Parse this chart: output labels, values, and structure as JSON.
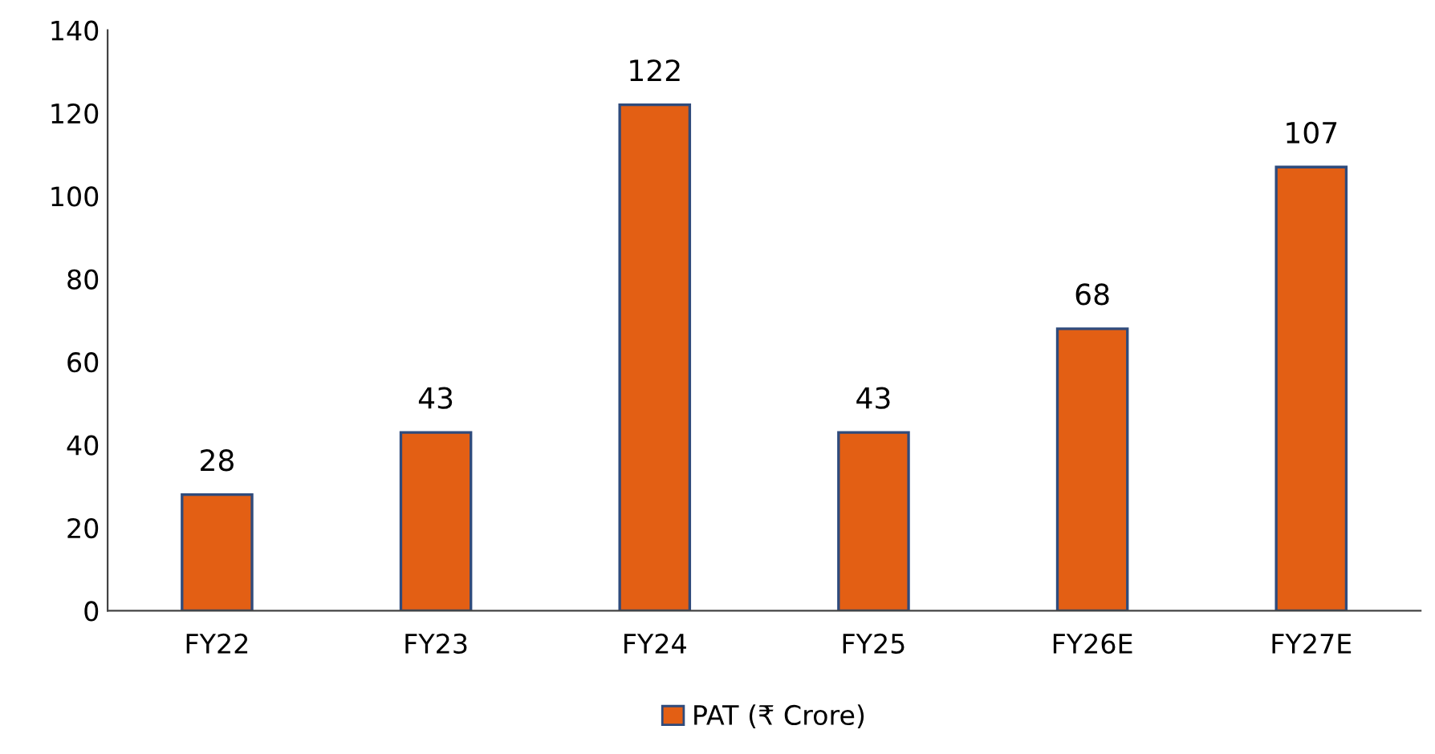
{
  "chart_data": {
    "type": "bar",
    "categories": [
      "FY22",
      "FY23",
      "FY24",
      "FY25",
      "FY26E",
      "FY27E"
    ],
    "series": [
      {
        "name": "PAT (₹ Crore)",
        "color": "#e35f14",
        "values": [
          28,
          43,
          122,
          43,
          68,
          107
        ]
      }
    ],
    "ylim": [
      0,
      140
    ],
    "yticks": [
      0,
      20,
      40,
      60,
      80,
      100,
      120,
      140
    ],
    "data_labels": true,
    "grid": false,
    "legend": "bottom"
  }
}
